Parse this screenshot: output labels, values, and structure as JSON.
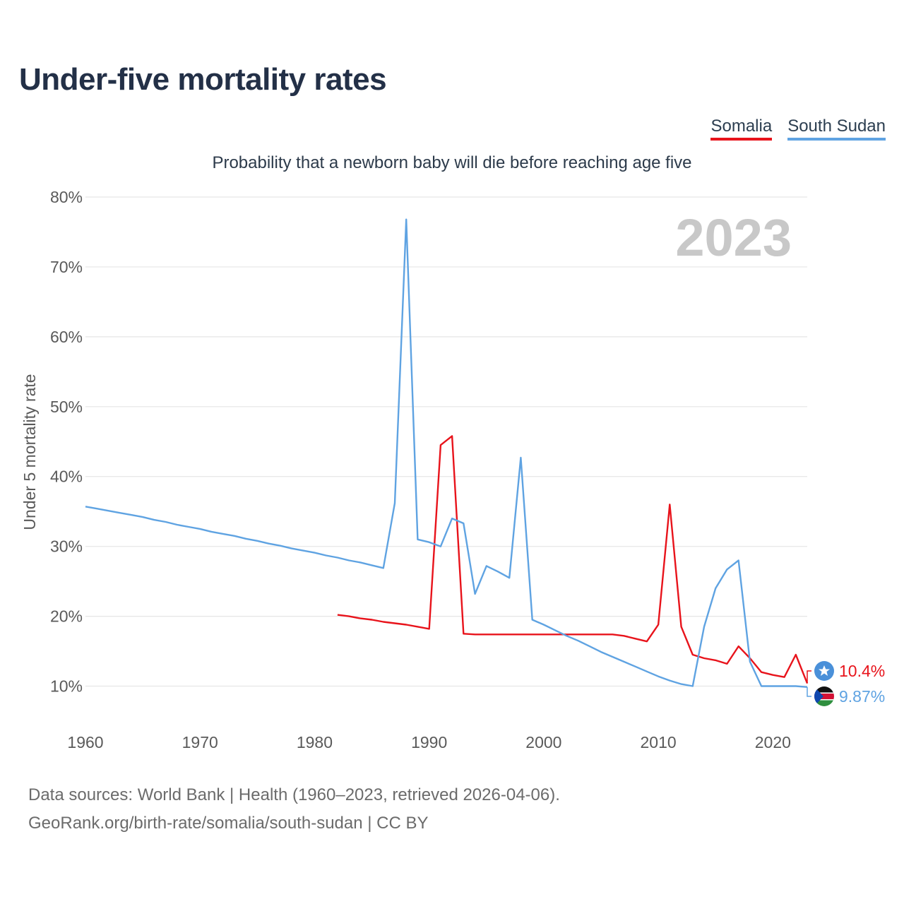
{
  "title": "Under-five mortality rates",
  "subtitle": "Probability that a newborn baby will die before reaching age five",
  "legend": [
    {
      "name": "Somalia",
      "color": "#e8131b"
    },
    {
      "name": "South Sudan",
      "color": "#5fa3e2"
    }
  ],
  "year_label": "2023",
  "footer": {
    "line1": "Data sources: World Bank | Health (1960–2023, retrieved 2026-04-06).",
    "line2": "GeoRank.org/birth-rate/somalia/south-sudan | CC BY"
  },
  "chart_data": {
    "type": "line",
    "ylabel": "Under 5 mortality rate",
    "xlabel": "",
    "xlim": [
      1960,
      2023
    ],
    "ylim": [
      0.05,
      0.8
    ],
    "yticks": [
      0.1,
      0.2,
      0.3,
      0.4,
      0.5,
      0.6,
      0.7,
      0.8
    ],
    "ytick_labels": [
      "10%",
      "20%",
      "30%",
      "40%",
      "50%",
      "60%",
      "70%",
      "80%"
    ],
    "xticks": [
      1960,
      1970,
      1980,
      1990,
      2000,
      2010,
      2020
    ],
    "xtick_labels": [
      "1960",
      "1970",
      "1980",
      "1990",
      "2000",
      "2010",
      "2020"
    ],
    "grid": true,
    "series": [
      {
        "name": "Somalia",
        "color": "#e8131b",
        "end_label": "10.4%",
        "points": [
          [
            1982,
            0.202
          ],
          [
            1983,
            0.2
          ],
          [
            1984,
            0.197
          ],
          [
            1985,
            0.195
          ],
          [
            1986,
            0.192
          ],
          [
            1987,
            0.19
          ],
          [
            1988,
            0.188
          ],
          [
            1989,
            0.185
          ],
          [
            1990,
            0.182
          ],
          [
            1991,
            0.445
          ],
          [
            1992,
            0.458
          ],
          [
            1993,
            0.175
          ],
          [
            1994,
            0.174
          ],
          [
            1995,
            0.174
          ],
          [
            1996,
            0.174
          ],
          [
            1997,
            0.174
          ],
          [
            1998,
            0.174
          ],
          [
            1999,
            0.174
          ],
          [
            2000,
            0.174
          ],
          [
            2001,
            0.174
          ],
          [
            2002,
            0.174
          ],
          [
            2003,
            0.174
          ],
          [
            2004,
            0.174
          ],
          [
            2005,
            0.174
          ],
          [
            2006,
            0.174
          ],
          [
            2007,
            0.172
          ],
          [
            2008,
            0.168
          ],
          [
            2009,
            0.164
          ],
          [
            2010,
            0.188
          ],
          [
            2011,
            0.36
          ],
          [
            2012,
            0.185
          ],
          [
            2013,
            0.145
          ],
          [
            2014,
            0.14
          ],
          [
            2015,
            0.137
          ],
          [
            2016,
            0.132
          ],
          [
            2017,
            0.157
          ],
          [
            2018,
            0.14
          ],
          [
            2019,
            0.12
          ],
          [
            2020,
            0.116
          ],
          [
            2021,
            0.113
          ],
          [
            2022,
            0.145
          ],
          [
            2023,
            0.104
          ]
        ]
      },
      {
        "name": "South Sudan",
        "color": "#5fa3e2",
        "end_label": "9.87%",
        "points": [
          [
            1960,
            0.357
          ],
          [
            1961,
            0.354
          ],
          [
            1962,
            0.351
          ],
          [
            1963,
            0.348
          ],
          [
            1964,
            0.345
          ],
          [
            1965,
            0.342
          ],
          [
            1966,
            0.338
          ],
          [
            1967,
            0.335
          ],
          [
            1968,
            0.331
          ],
          [
            1969,
            0.328
          ],
          [
            1970,
            0.325
          ],
          [
            1971,
            0.321
          ],
          [
            1972,
            0.318
          ],
          [
            1973,
            0.315
          ],
          [
            1974,
            0.311
          ],
          [
            1975,
            0.308
          ],
          [
            1976,
            0.304
          ],
          [
            1977,
            0.301
          ],
          [
            1978,
            0.297
          ],
          [
            1979,
            0.294
          ],
          [
            1980,
            0.291
          ],
          [
            1981,
            0.287
          ],
          [
            1982,
            0.284
          ],
          [
            1983,
            0.28
          ],
          [
            1984,
            0.277
          ],
          [
            1985,
            0.273
          ],
          [
            1986,
            0.269
          ],
          [
            1987,
            0.362
          ],
          [
            1988,
            0.768
          ],
          [
            1989,
            0.31
          ],
          [
            1990,
            0.306
          ],
          [
            1991,
            0.3
          ],
          [
            1992,
            0.34
          ],
          [
            1993,
            0.333
          ],
          [
            1994,
            0.232
          ],
          [
            1995,
            0.272
          ],
          [
            1996,
            0.264
          ],
          [
            1997,
            0.255
          ],
          [
            1998,
            0.427
          ],
          [
            1999,
            0.195
          ],
          [
            2000,
            0.188
          ],
          [
            2001,
            0.18
          ],
          [
            2002,
            0.172
          ],
          [
            2003,
            0.165
          ],
          [
            2004,
            0.157
          ],
          [
            2005,
            0.149
          ],
          [
            2006,
            0.142
          ],
          [
            2007,
            0.135
          ],
          [
            2008,
            0.128
          ],
          [
            2009,
            0.121
          ],
          [
            2010,
            0.114
          ],
          [
            2011,
            0.108
          ],
          [
            2012,
            0.103
          ],
          [
            2013,
            0.1
          ],
          [
            2014,
            0.185
          ],
          [
            2015,
            0.24
          ],
          [
            2016,
            0.267
          ],
          [
            2017,
            0.28
          ],
          [
            2018,
            0.135
          ],
          [
            2019,
            0.1
          ],
          [
            2020,
            0.1
          ],
          [
            2021,
            0.1
          ],
          [
            2022,
            0.1
          ],
          [
            2023,
            0.0987
          ]
        ]
      }
    ]
  }
}
